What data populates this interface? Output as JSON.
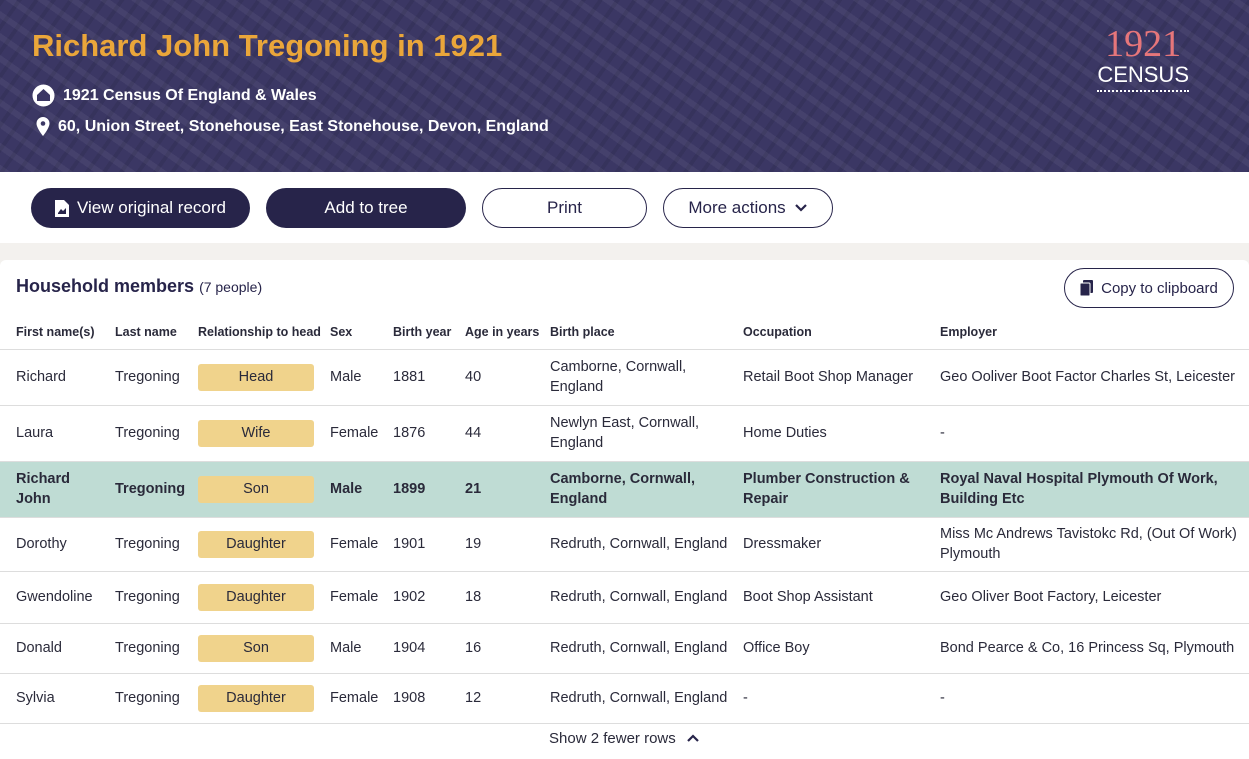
{
  "header": {
    "title": "Richard John Tregoning in 1921",
    "source": "1921 Census Of England & Wales",
    "address": "60, Union Street, Stonehouse, East Stonehouse, Devon, England",
    "logo_year": "1921",
    "logo_word": "CENSUS"
  },
  "actions": [
    "View original record",
    "Add to tree",
    "Print",
    "More actions"
  ],
  "household": {
    "title": "Household members",
    "count": "(7 people)",
    "copy": "Copy to clipboard",
    "columns": [
      "First name(s)",
      "Last name",
      "Relationship to head",
      "Sex",
      "Birth year",
      "Age in years",
      "Birth place",
      "Occupation",
      "Employer"
    ],
    "rows": [
      [
        "Richard",
        "Tregoning",
        "Head",
        "Male",
        1881,
        40,
        "Camborne, Cornwall, England",
        "Retail Boot Shop Manager",
        "Geo Ooliver Boot Factor Charles St, Leicester"
      ],
      [
        "Laura",
        "Tregoning",
        "Wife",
        "Female",
        1876,
        44,
        "Newlyn East, Cornwall, England",
        "Home Duties",
        "-"
      ],
      [
        "Richard John",
        "Tregoning",
        "Son",
        "Male",
        1899,
        21,
        "Camborne, Cornwall, England",
        "Plumber Construction & Repair",
        "Royal Naval Hospital Plymouth Of Work, Building Etc"
      ],
      [
        "Dorothy",
        "Tregoning",
        "Daughter",
        "Female",
        1901,
        19,
        "Redruth, Cornwall, England",
        "Dressmaker",
        "Miss Mc Andrews Tavistokc Rd, (Out Of Work) Plymouth"
      ],
      [
        "Gwendoline",
        "Tregoning",
        "Daughter",
        "Female",
        1902,
        18,
        "Redruth, Cornwall, England",
        "Boot Shop Assistant",
        "Geo Oliver Boot Factory, Leicester"
      ],
      [
        "Donald",
        "Tregoning",
        "Son",
        "Male",
        1904,
        16,
        "Redruth, Cornwall, England",
        "Office Boy",
        "Bond Pearce & Co, 16 Princess Sq, Plymouth"
      ],
      [
        "Sylvia",
        "Tregoning",
        "Daughter",
        "Female",
        1908,
        12,
        "Redruth, Cornwall, England",
        "-",
        "-"
      ]
    ],
    "toggle": "Show 2 fewer rows"
  }
}
